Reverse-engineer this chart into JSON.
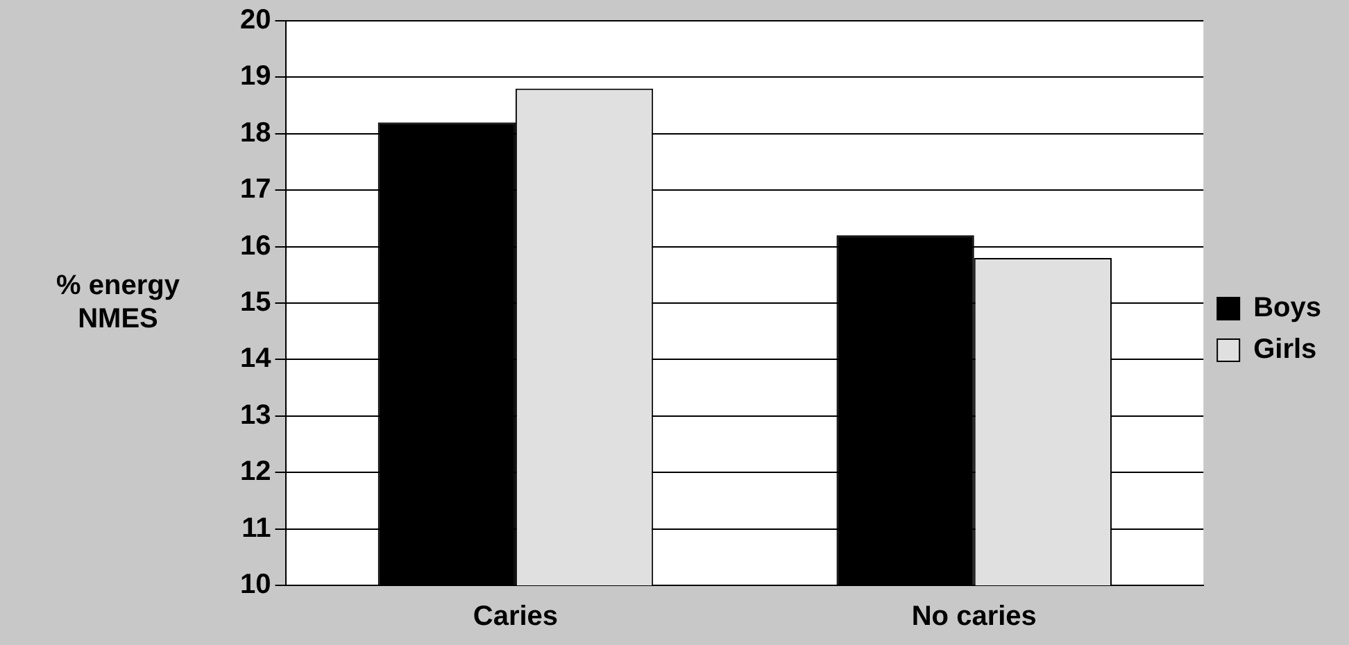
{
  "chart_data": {
    "type": "bar",
    "ylabel": "% energy NMES",
    "categories": [
      "Caries",
      "No caries"
    ],
    "series": [
      {
        "name": "Boys",
        "color": "#000000",
        "values": [
          18.2,
          16.2
        ]
      },
      {
        "name": "Girls",
        "color": "#e0e0e0",
        "values": [
          18.8,
          15.8
        ]
      }
    ],
    "ylim": [
      10,
      20
    ],
    "yticks": [
      10,
      11,
      12,
      13,
      14,
      15,
      16,
      17,
      18,
      19,
      20
    ],
    "grid": "y",
    "legend": "right"
  }
}
